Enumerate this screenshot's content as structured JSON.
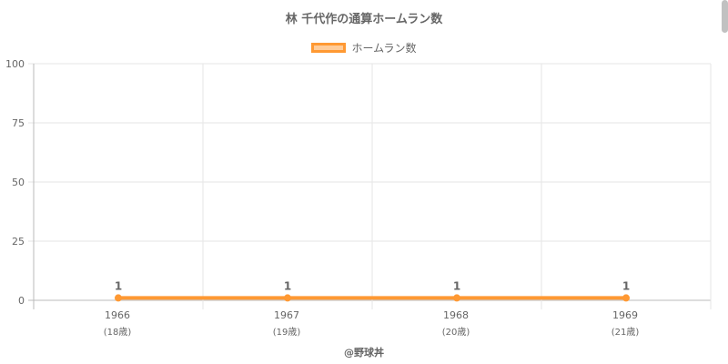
{
  "chart_data": {
    "type": "line",
    "title": "林 千代作の通算ホームラン数",
    "categories": [
      "1966",
      "1967",
      "1968",
      "1969"
    ],
    "sub_labels": [
      "(18歳)",
      "(19歳)",
      "(20歳)",
      "(21歳)"
    ],
    "series": [
      {
        "name": "ホームラン数",
        "values": [
          1,
          1,
          1,
          1
        ],
        "color": "#ff9933"
      }
    ],
    "data_labels": [
      "1",
      "1",
      "1",
      "1"
    ],
    "ylim": [
      0,
      100
    ],
    "yticks": [
      "0",
      "25",
      "50",
      "75",
      "100"
    ],
    "ytick_values": [
      0,
      25,
      50,
      75,
      100
    ],
    "grid": true,
    "legend": "top"
  },
  "footer": {
    "credit": "@野球丼"
  },
  "colors": {
    "grid": "#e5e5e5",
    "axis": "#bbbbbb",
    "text": "#666666",
    "series": "#ff9933"
  }
}
